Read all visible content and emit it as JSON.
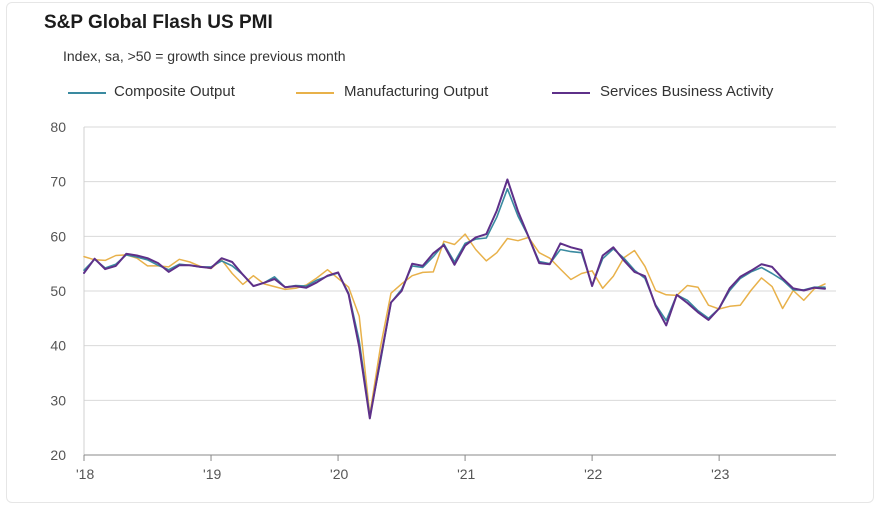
{
  "chart_data": {
    "type": "line",
    "title": "S&P Global Flash US PMI",
    "subtitle": "Index, sa, >50 = growth since previous month",
    "ylim": [
      20,
      80
    ],
    "yticks": [
      20,
      30,
      40,
      50,
      60,
      70,
      80
    ],
    "xlim": [
      2018.0,
      2023.92
    ],
    "xticks": [
      {
        "value": 2018,
        "label": "'18"
      },
      {
        "value": 2019,
        "label": "'19"
      },
      {
        "value": 2020,
        "label": "'20"
      },
      {
        "value": 2021,
        "label": "'21"
      },
      {
        "value": 2022,
        "label": "'22"
      },
      {
        "value": 2023,
        "label": "'23"
      }
    ],
    "grid": true,
    "legend": "top",
    "series": [
      {
        "name": "Composite Output",
        "color": "#3a8aa0",
        "start": 2018.0,
        "values": [
          53.8,
          55.8,
          54.2,
          54.9,
          56.6,
          56.2,
          55.7,
          54.7,
          53.9,
          54.9,
          54.7,
          54.4,
          54.4,
          55.5,
          54.6,
          53.0,
          50.9,
          51.5,
          52.6,
          50.7,
          51.0,
          50.9,
          52.0,
          52.7,
          53.3,
          49.6,
          40.9,
          27.0,
          37.0,
          47.9,
          50.3,
          54.6,
          54.3,
          56.3,
          58.6,
          55.3,
          58.7,
          59.5,
          59.7,
          63.5,
          68.7,
          63.7,
          59.9,
          55.4,
          55.0,
          57.6,
          57.2,
          57.0,
          51.1,
          55.9,
          57.7,
          56.0,
          53.8,
          52.3,
          47.5,
          44.6,
          49.3,
          48.3,
          46.4,
          45.0,
          46.8,
          50.1,
          52.3,
          53.5,
          54.3,
          53.2,
          52.0,
          50.2,
          50.2,
          50.7,
          50.7
        ],
        "note": "no visible labels"
      },
      {
        "name": "Manufacturing Output",
        "color": "#e8b14a",
        "start": 2018.0,
        "values": [
          56.3,
          55.7,
          55.6,
          56.5,
          56.6,
          56.0,
          54.6,
          54.6,
          54.4,
          55.8,
          55.3,
          54.5,
          54.1,
          55.7,
          53.2,
          51.2,
          52.8,
          51.3,
          50.8,
          50.3,
          50.5,
          51.1,
          52.4,
          53.9,
          52.3,
          50.7,
          45.4,
          27.4,
          39.7,
          49.6,
          51.3,
          52.8,
          53.4,
          53.5,
          59.1,
          58.5,
          60.4,
          57.6,
          55.5,
          57.0,
          59.6,
          59.2,
          59.8,
          57.0,
          56.0,
          54.0,
          52.1,
          53.2,
          53.7,
          50.5,
          52.7,
          56.1,
          57.4,
          54.5,
          50.1,
          49.3,
          49.2,
          51.0,
          50.7,
          47.4,
          46.7,
          47.2,
          47.4,
          50.1,
          52.4,
          50.8,
          46.8,
          50.1,
          48.3,
          50.4,
          51.3
        ],
        "note": "no visible labels"
      },
      {
        "name": "Services Business Activity",
        "color": "#5e3089",
        "start": 2018.0,
        "values": [
          53.3,
          55.9,
          54.0,
          54.6,
          56.8,
          56.5,
          56.0,
          55.1,
          53.5,
          54.7,
          54.7,
          54.4,
          54.2,
          56.0,
          55.3,
          53.0,
          50.9,
          51.5,
          52.2,
          50.7,
          50.9,
          50.6,
          51.6,
          52.8,
          53.4,
          49.4,
          39.8,
          26.7,
          37.5,
          47.9,
          50.0,
          55.0,
          54.6,
          56.9,
          58.4,
          54.8,
          58.3,
          59.8,
          60.4,
          64.7,
          70.4,
          64.6,
          59.9,
          55.1,
          54.9,
          58.7,
          58.0,
          57.5,
          50.9,
          56.5,
          58.0,
          55.6,
          53.5,
          52.7,
          47.3,
          43.7,
          49.3,
          47.8,
          46.1,
          44.7,
          46.8,
          50.5,
          52.6,
          53.7,
          54.9,
          54.4,
          52.3,
          50.5,
          50.1,
          50.6,
          50.4
        ],
        "note": "no visible labels"
      }
    ]
  }
}
